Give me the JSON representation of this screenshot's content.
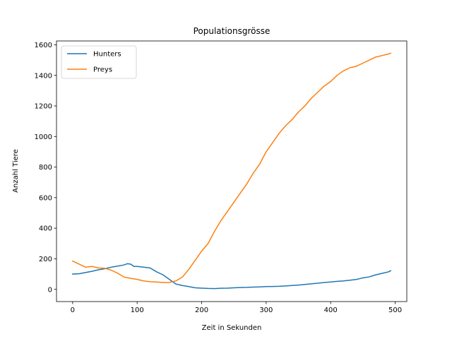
{
  "chart_data": {
    "type": "line",
    "title": "Populationsgrösse",
    "xlabel": "Zeit in Sekunden",
    "ylabel": "Anzahl Tiere",
    "xlim": [
      -25,
      518
    ],
    "ylim": [
      -80,
      1625
    ],
    "xticks": [
      0,
      100,
      200,
      300,
      400,
      500
    ],
    "yticks": [
      0,
      200,
      400,
      600,
      800,
      1000,
      1200,
      1400,
      1600
    ],
    "grid": false,
    "legend_position": "upper-left",
    "series": [
      {
        "name": "Hunters",
        "color": "#1f77b4",
        "x": [
          0,
          10,
          20,
          30,
          40,
          50,
          60,
          70,
          80,
          85,
          90,
          95,
          100,
          110,
          120,
          130,
          140,
          150,
          160,
          170,
          180,
          190,
          200,
          210,
          220,
          230,
          240,
          250,
          260,
          270,
          280,
          290,
          300,
          310,
          320,
          330,
          340,
          350,
          360,
          370,
          380,
          390,
          400,
          410,
          420,
          430,
          440,
          450,
          460,
          470,
          480,
          490,
          493
        ],
        "y": [
          100,
          102,
          110,
          118,
          128,
          135,
          145,
          152,
          160,
          168,
          165,
          150,
          150,
          145,
          140,
          115,
          95,
          65,
          35,
          25,
          18,
          10,
          8,
          6,
          5,
          7,
          8,
          10,
          12,
          13,
          15,
          16,
          18,
          19,
          20,
          22,
          25,
          28,
          32,
          36,
          40,
          45,
          48,
          52,
          55,
          60,
          65,
          75,
          82,
          95,
          105,
          115,
          122
        ]
      },
      {
        "name": "Preys",
        "color": "#ff7f0e",
        "x": [
          0,
          10,
          20,
          30,
          40,
          50,
          60,
          70,
          80,
          90,
          100,
          110,
          120,
          130,
          140,
          150,
          160,
          170,
          180,
          190,
          200,
          210,
          220,
          230,
          240,
          250,
          260,
          270,
          280,
          290,
          300,
          310,
          320,
          330,
          340,
          350,
          360,
          370,
          380,
          390,
          400,
          410,
          420,
          430,
          440,
          450,
          460,
          470,
          480,
          490,
          493
        ],
        "y": [
          185,
          165,
          145,
          150,
          140,
          138,
          125,
          105,
          80,
          72,
          65,
          55,
          50,
          48,
          45,
          45,
          55,
          80,
          130,
          190,
          250,
          300,
          380,
          450,
          510,
          570,
          630,
          690,
          760,
          820,
          900,
          960,
          1020,
          1070,
          1110,
          1160,
          1200,
          1250,
          1290,
          1330,
          1360,
          1400,
          1430,
          1450,
          1460,
          1480,
          1500,
          1520,
          1530,
          1540,
          1545
        ]
      }
    ]
  }
}
